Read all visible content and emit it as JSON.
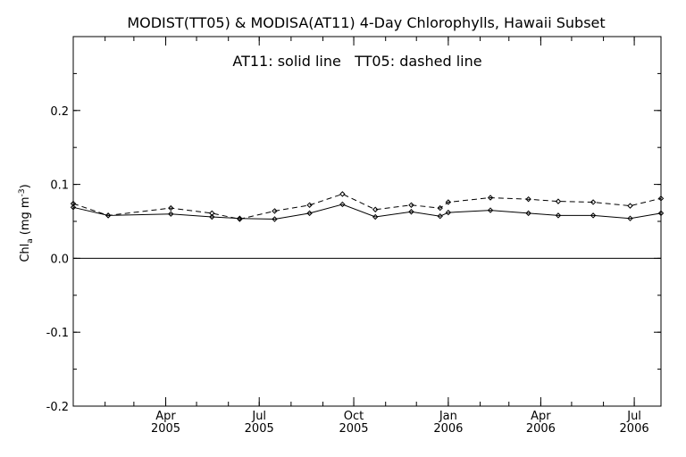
{
  "chart_data": {
    "type": "line",
    "title": "MODIST(TT05) & MODISA(AT11) 4-Day Chlorophylls, Hawaii Subset",
    "annotation": "AT11: solid line   TT05: dashed line",
    "ylabel_main": "Chl",
    "ylabel_sub": "a",
    "ylabel_unit": "(mg m",
    "ylabel_exp": "-3",
    "ylabel_close": ")",
    "ylim": [
      -0.2,
      0.3
    ],
    "xlim": [
      "2005-01-01",
      "2006-07-27"
    ],
    "yticks": [
      {
        "value": -0.2,
        "label": "-0.2"
      },
      {
        "value": -0.1,
        "label": "-0.1"
      },
      {
        "value": 0.0,
        "label": "0.0"
      },
      {
        "value": 0.1,
        "label": "0.1"
      },
      {
        "value": 0.2,
        "label": "0.2"
      }
    ],
    "xticks": [
      {
        "date": "2005-04-01",
        "month": "Apr",
        "year": "2005"
      },
      {
        "date": "2005-07-01",
        "month": "Jul",
        "year": "2005"
      },
      {
        "date": "2005-10-01",
        "month": "Oct",
        "year": "2005"
      },
      {
        "date": "2006-01-01",
        "month": "Jan",
        "year": "2006"
      },
      {
        "date": "2006-04-01",
        "month": "Apr",
        "year": "2006"
      },
      {
        "date": "2006-07-01",
        "month": "Jul",
        "year": "2006"
      }
    ],
    "zero_line": true,
    "series": [
      {
        "style": "solid",
        "x": [
          "2005-01-01",
          "2005-02-04",
          "2005-04-06",
          "2005-05-16",
          "2005-06-12",
          "2005-07-16",
          "2005-08-19",
          "2005-09-20",
          "2005-10-22",
          "2005-11-26",
          "2005-12-24",
          "2006-01-01",
          "2006-02-11",
          "2006-03-20",
          "2006-04-18",
          "2006-05-22",
          "2006-06-27",
          "2006-07-27"
        ],
        "y": [
          0.069,
          0.058,
          0.06,
          0.056,
          0.054,
          0.053,
          0.061,
          0.073,
          0.056,
          0.063,
          0.057,
          0.062,
          0.065,
          0.061,
          0.058,
          0.058,
          0.054,
          0.061
        ]
      },
      {
        "style": "dashed",
        "x": [
          "2005-01-01",
          "2005-02-04",
          "2005-04-06",
          "2005-05-16",
          "2005-06-12",
          "2005-07-16",
          "2005-08-19",
          "2005-09-20",
          "2005-10-22",
          "2005-11-26",
          "2005-12-24",
          "2006-01-01",
          "2006-02-11",
          "2006-03-20",
          "2006-04-18",
          "2006-05-22",
          "2006-06-27",
          "2006-07-27"
        ],
        "y": [
          0.074,
          0.058,
          0.068,
          0.061,
          0.053,
          0.064,
          0.072,
          0.087,
          0.066,
          0.072,
          0.068,
          0.076,
          0.082,
          0.08,
          0.077,
          0.076,
          0.071,
          0.081
        ]
      }
    ]
  }
}
